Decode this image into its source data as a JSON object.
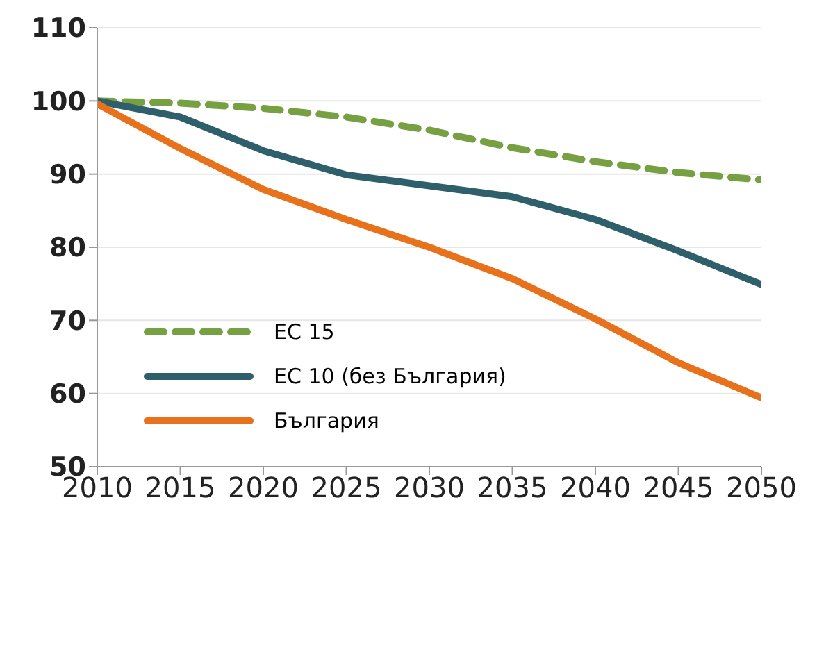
{
  "chart_data": {
    "type": "line",
    "x": [
      2010,
      2015,
      2020,
      2025,
      2030,
      2035,
      2040,
      2045,
      2050
    ],
    "series": [
      {
        "name": "ЕС 15",
        "color": "#77a043",
        "line_style": "dashed",
        "values": [
          100,
          99.7,
          99.0,
          97.8,
          96.0,
          93.6,
          91.7,
          90.2,
          89.2
        ]
      },
      {
        "name": "ЕС 10 (без България)",
        "color": "#2e5f6b",
        "line_style": "solid",
        "values": [
          100,
          97.8,
          93.2,
          89.9,
          88.4,
          86.9,
          83.8,
          79.5,
          74.9
        ]
      },
      {
        "name": "България",
        "color": "#e8711c",
        "line_style": "solid",
        "values": [
          99.6,
          93.5,
          87.9,
          83.8,
          80.0,
          75.7,
          70.2,
          64.2,
          59.4
        ]
      }
    ],
    "xlim": [
      2010,
      2050
    ],
    "xticks": [
      2010,
      2015,
      2020,
      2025,
      2030,
      2035,
      2040,
      2045,
      2050
    ],
    "ylim": [
      50,
      110
    ],
    "yticks": [
      50,
      60,
      70,
      80,
      90,
      100,
      110
    ],
    "grid": "y",
    "legend": "bottom left",
    "marker": "none"
  }
}
